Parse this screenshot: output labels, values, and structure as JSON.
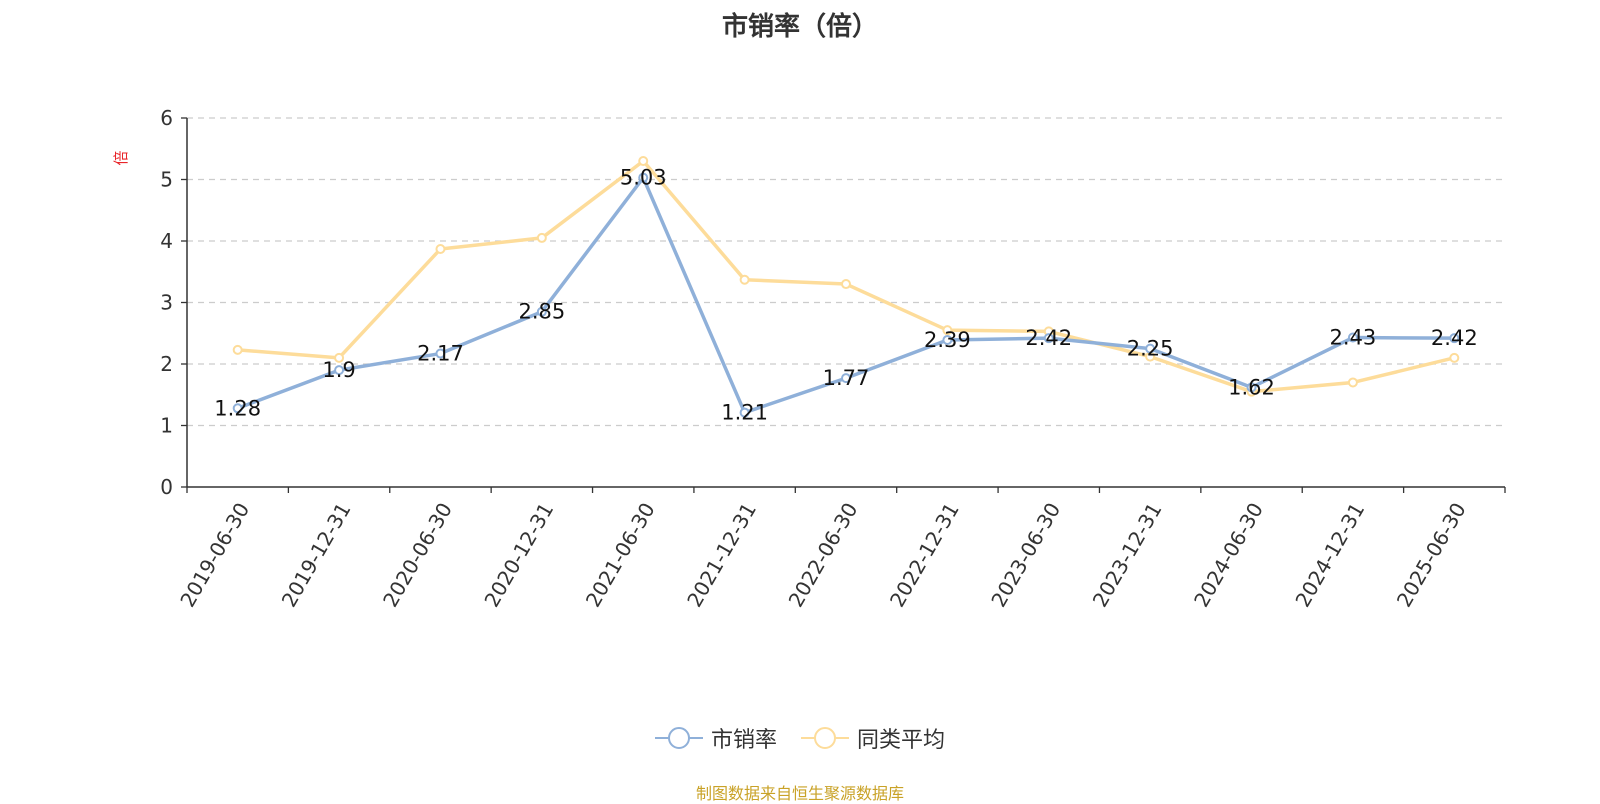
{
  "colors": {
    "series_1": "#8fb0d9",
    "series_2": "#fddc9a",
    "unit_label": "#e8252a",
    "source": "#c9a227",
    "title": "#333333",
    "axis": "#333333",
    "grid": "#cccccc"
  },
  "chart_data": {
    "type": "line",
    "title": "市销率（倍）",
    "ylabel": "倍",
    "xlabel": "",
    "categories": [
      "2019-06-30",
      "2019-12-31",
      "2020-06-30",
      "2020-12-31",
      "2021-06-30",
      "2021-12-31",
      "2022-06-30",
      "2022-12-31",
      "2023-06-30",
      "2023-12-31",
      "2024-06-30",
      "2024-12-31",
      "2025-06-30"
    ],
    "ylim": [
      0,
      6
    ],
    "yticks": [
      "0",
      "1",
      "2",
      "3",
      "4",
      "5",
      "6"
    ],
    "grid": true,
    "legend_position": "bottom-center",
    "series": [
      {
        "name": "市销率",
        "values": [
          1.28,
          1.9,
          2.17,
          2.85,
          5.03,
          1.21,
          1.77,
          2.39,
          2.42,
          2.25,
          1.62,
          2.43,
          2.42
        ],
        "labels": [
          "1.28",
          "1.9",
          "2.17",
          "2.85",
          "5.03",
          "1.21",
          "1.77",
          "2.39",
          "2.42",
          "2.25",
          "1.62",
          "2.43",
          "2.42"
        ]
      },
      {
        "name": "同类平均",
        "values": [
          2.23,
          2.1,
          3.87,
          4.05,
          5.3,
          3.37,
          3.3,
          2.55,
          2.53,
          2.12,
          1.55,
          1.7,
          2.1
        ]
      }
    ]
  },
  "legend": [
    {
      "label": "市销率",
      "icon": "circle-line-legend-icon"
    },
    {
      "label": "同类平均",
      "icon": "circle-line-legend-icon"
    }
  ],
  "source_note": "制图数据来自恒生聚源数据库"
}
